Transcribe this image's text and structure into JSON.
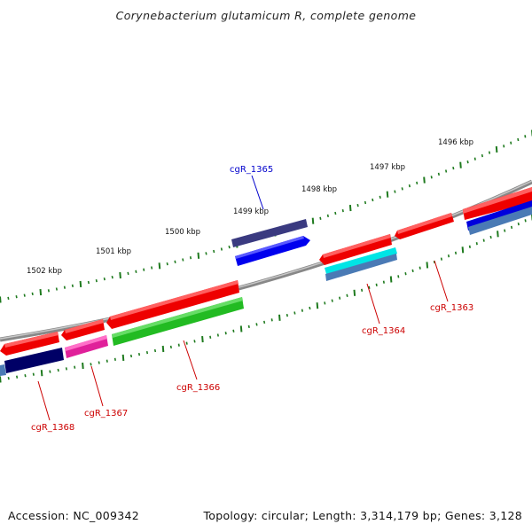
{
  "title": "Corynebacterium glutamicum R, complete genome",
  "footer": {
    "accession": "Accession: NC_009342",
    "summary": "Topology: circular; Length: 3,314,179 bp; Genes: 3,128"
  },
  "colors": {
    "backbone": "#888888",
    "tick": "#1e7a1e",
    "label_forward": "#0000cc",
    "label_reverse": "#cc0000"
  },
  "kbp_labels": [
    "1502 kbp",
    "1501 kbp",
    "1500 kbp",
    "1499 kbp",
    "1498 kbp",
    "1497 kbp",
    "1496 kbp"
  ],
  "genes": [
    {
      "label": "cgR_1365",
      "strand": "forward",
      "color": "#0000cc"
    },
    {
      "label": "cgR_1363",
      "strand": "reverse",
      "color": "#cc0000"
    },
    {
      "label": "cgR_1364",
      "strand": "reverse",
      "color": "#cc0000"
    },
    {
      "label": "cgR_1366",
      "strand": "reverse",
      "color": "#cc0000"
    },
    {
      "label": "cgR_1367",
      "strand": "reverse",
      "color": "#cc0000"
    },
    {
      "label": "cgR_1368",
      "strand": "reverse",
      "color": "#cc0000"
    }
  ]
}
